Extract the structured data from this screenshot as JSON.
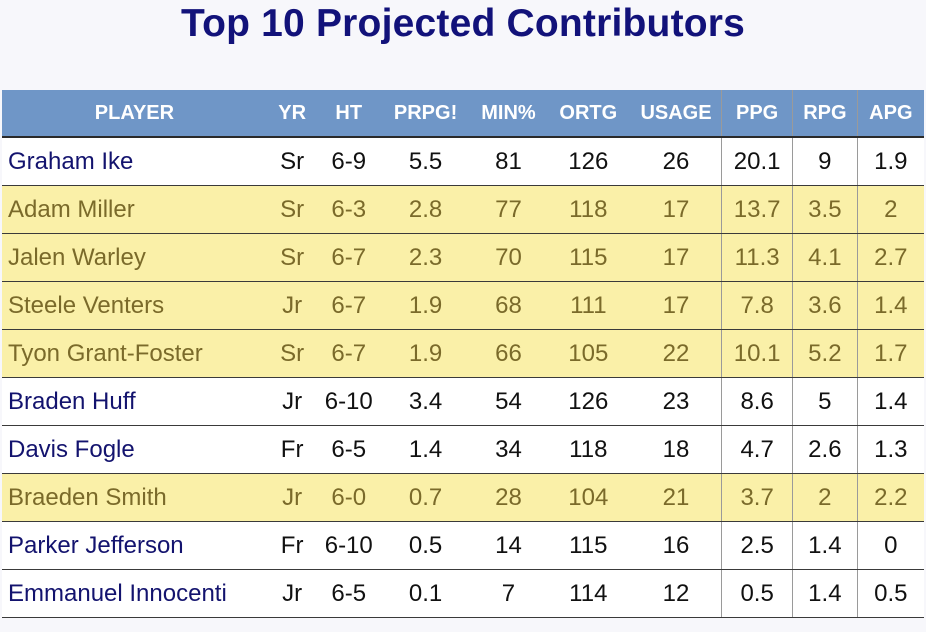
{
  "title": "Top 10 Projected Contributors",
  "table": {
    "headers": [
      "PLAYER",
      "YR",
      "HT",
      "PRPG!",
      "MIN%",
      "ORTG",
      "USAGE",
      "PPG",
      "RPG",
      "APG"
    ],
    "rows": [
      {
        "style": "plain",
        "cells": [
          "Graham Ike",
          "Sr",
          "6-9",
          "5.5",
          "81",
          "126",
          "26",
          "20.1",
          "9",
          "1.9"
        ]
      },
      {
        "style": "gold",
        "cells": [
          "Adam Miller",
          "Sr",
          "6-3",
          "2.8",
          "77",
          "118",
          "17",
          "13.7",
          "3.5",
          "2"
        ]
      },
      {
        "style": "gold",
        "cells": [
          "Jalen Warley",
          "Sr",
          "6-7",
          "2.3",
          "70",
          "115",
          "17",
          "11.3",
          "4.1",
          "2.7"
        ]
      },
      {
        "style": "gold",
        "cells": [
          "Steele Venters",
          "Jr",
          "6-7",
          "1.9",
          "68",
          "111",
          "17",
          "7.8",
          "3.6",
          "1.4"
        ]
      },
      {
        "style": "gold",
        "cells": [
          "Tyon Grant-Foster",
          "Sr",
          "6-7",
          "1.9",
          "66",
          "105",
          "22",
          "10.1",
          "5.2",
          "1.7"
        ]
      },
      {
        "style": "plain",
        "cells": [
          "Braden Huff",
          "Jr",
          "6-10",
          "3.4",
          "54",
          "126",
          "23",
          "8.6",
          "5",
          "1.4"
        ]
      },
      {
        "style": "plain",
        "cells": [
          "Davis Fogle",
          "Fr",
          "6-5",
          "1.4",
          "34",
          "118",
          "18",
          "4.7",
          "2.6",
          "1.3"
        ]
      },
      {
        "style": "gold",
        "cells": [
          "Braeden Smith",
          "Jr",
          "6-0",
          "0.7",
          "28",
          "104",
          "21",
          "3.7",
          "2",
          "2.2"
        ]
      },
      {
        "style": "plain",
        "cells": [
          "Parker Jefferson",
          "Fr",
          "6-10",
          "0.5",
          "14",
          "115",
          "16",
          "2.5",
          "1.4",
          "0"
        ]
      },
      {
        "style": "plain",
        "cells": [
          "Emmanuel Innocenti",
          "Jr",
          "6-5",
          "0.1",
          "7",
          "114",
          "12",
          "0.5",
          "1.4",
          "0.5"
        ]
      }
    ]
  },
  "colors": {
    "title": "#12127a",
    "header_bg": "#6f96c7",
    "gold_row_bg": "#faf0a8",
    "gold_row_text": "#7a6a2a",
    "plain_player_text": "#13136e"
  }
}
